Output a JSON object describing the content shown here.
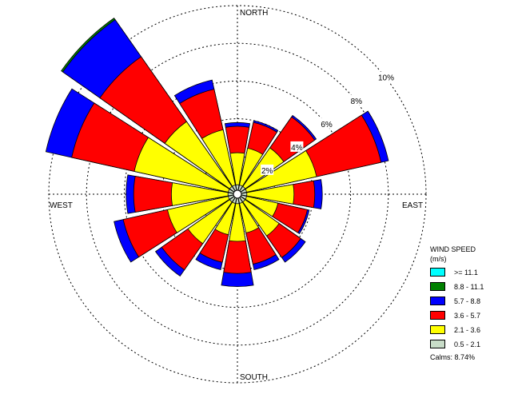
{
  "chart_data": {
    "type": "wind-rose",
    "directions": [
      "N",
      "NNE",
      "NE",
      "ENE",
      "E",
      "ESE",
      "SE",
      "SSE",
      "S",
      "SSW",
      "SW",
      "WSW",
      "W",
      "WNW",
      "NW",
      "NNW"
    ],
    "compass_labels": {
      "north": "NORTH",
      "east": "EAST",
      "south": "SOUTH",
      "west": "WEST"
    },
    "rings": [
      {
        "value": 2,
        "label": "2%"
      },
      {
        "value": 4,
        "label": "4%"
      },
      {
        "value": 6,
        "label": "6%"
      },
      {
        "value": 8,
        "label": "8%"
      },
      {
        "value": 10,
        "label": "10%"
      }
    ],
    "bins": [
      {
        "label": ">= 11.1",
        "color": "#00ffff"
      },
      {
        "label": "8.8 - 11.1",
        "color": "#008000"
      },
      {
        "label": "5.7 -  8.8",
        "color": "#0000ff"
      },
      {
        "label": "3.6 -  5.7",
        "color": "#ff0000"
      },
      {
        "label": "2.1 -  3.6",
        "color": "#ffff00"
      },
      {
        "label": "0.5 -  2.1",
        "color": "#c8dcc8"
      }
    ],
    "cumulative_bin_order": [
      "0.5 -  2.1",
      "2.1 -  3.6",
      "3.6 -  5.7",
      "5.7 -  8.8",
      "8.8 - 11.1",
      ">= 11.1"
    ],
    "cumulative_percent": [
      [
        0.5,
        2.2,
        3.6,
        3.8,
        3.8,
        3.8
      ],
      [
        0.5,
        2.5,
        3.9,
        4.0,
        4.0,
        4.0
      ],
      [
        0.5,
        3.0,
        5.0,
        5.1,
        5.1,
        5.1
      ],
      [
        0.5,
        4.3,
        7.8,
        8.2,
        8.2,
        8.2
      ],
      [
        0.5,
        3.0,
        4.1,
        4.5,
        4.5,
        4.5
      ],
      [
        0.5,
        2.2,
        3.8,
        3.9,
        3.9,
        3.9
      ],
      [
        0.5,
        2.7,
        4.1,
        4.4,
        4.4,
        4.4
      ],
      [
        0.5,
        2.1,
        3.8,
        4.1,
        4.1,
        4.1
      ],
      [
        0.5,
        2.5,
        4.2,
        4.9,
        4.9,
        4.9
      ],
      [
        0.5,
        2.2,
        3.7,
        4.1,
        4.1,
        4.1
      ],
      [
        0.5,
        3.2,
        4.9,
        5.3,
        5.3,
        5.3
      ],
      [
        0.5,
        3.8,
        6.2,
        6.7,
        6.7,
        6.7
      ],
      [
        0.5,
        3.5,
        5.5,
        5.9,
        5.9,
        5.9
      ],
      [
        0.5,
        5.6,
        9.0,
        10.4,
        10.4,
        10.4
      ],
      [
        0.5,
        4.7,
        8.9,
        11.3,
        11.4,
        11.4
      ],
      [
        0.5,
        3.5,
        5.7,
        6.2,
        6.2,
        6.2
      ]
    ],
    "legend_title": [
      "WIND SPEED",
      "(m/s)"
    ],
    "calms": "Calms: 8.74%"
  }
}
